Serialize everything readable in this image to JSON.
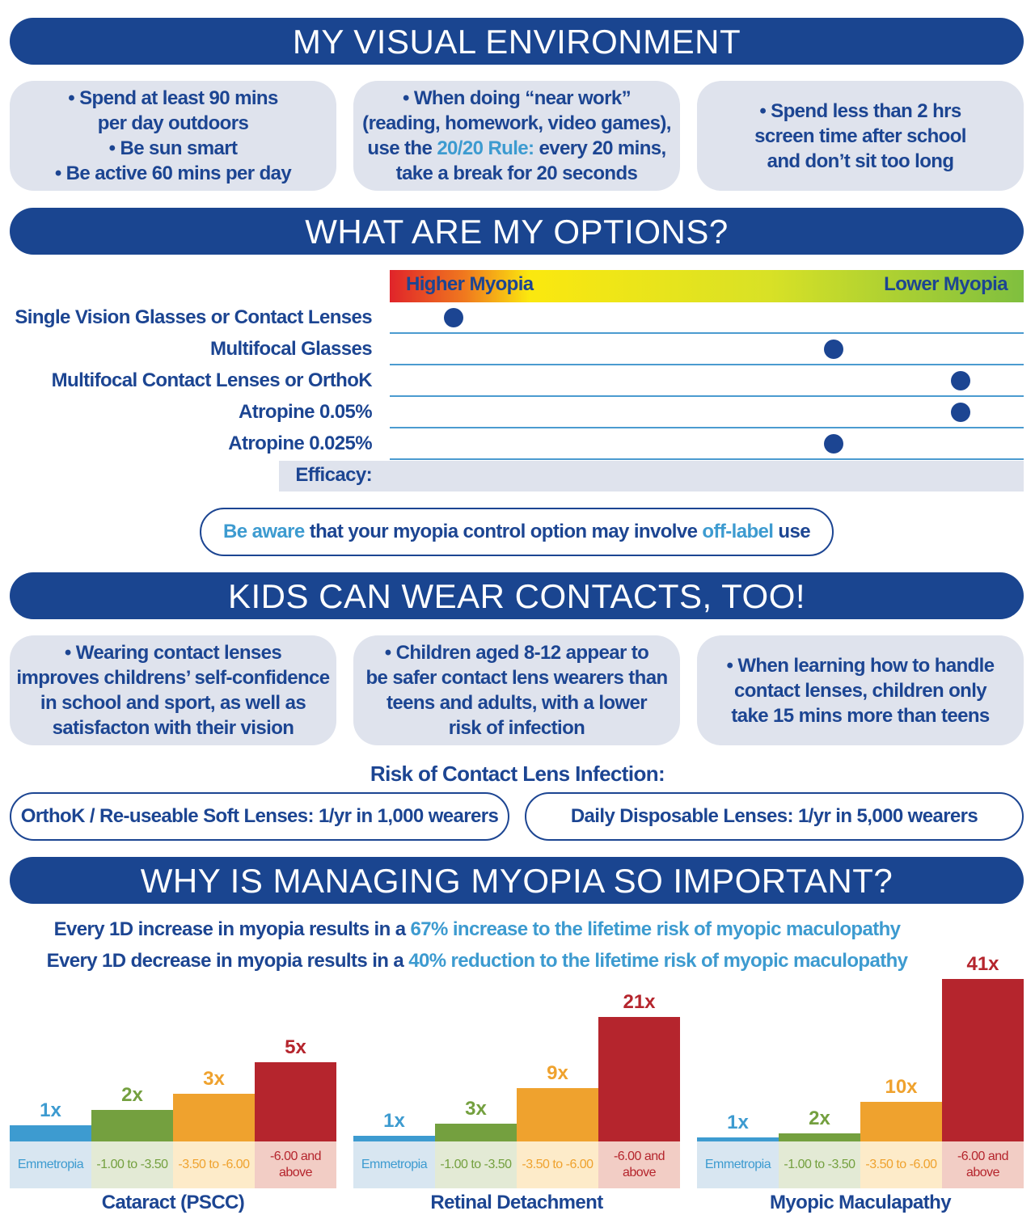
{
  "sections": {
    "environment": {
      "title": "MY VISUAL ENVIRONMENT",
      "boxes": [
        {
          "lines": [
            "• Spend at least 90 mins",
            "per day outdoors",
            "• Be sun smart",
            "• Be active 60 mins per day"
          ]
        },
        {
          "l1": "• When doing “near work”",
          "l2": "(reading, homework, video games),",
          "l3a": "use the ",
          "l3b": "20/20 Rule:",
          "l3c": " every 20 mins,",
          "l4": "take a break for 20 seconds"
        },
        {
          "lines": [
            "• Spend less than 2 hrs",
            "screen time after school",
            "and don’t sit too long"
          ]
        }
      ]
    },
    "options": {
      "title": "WHAT ARE MY OPTIONS?",
      "note_a": "Be aware",
      "note_b": " that your myopia control option may involve ",
      "note_c": "off-label",
      "note_d": " use"
    },
    "contacts": {
      "title": "KIDS CAN WEAR CONTACTS, TOO!",
      "boxes": [
        [
          "• Wearing contact lenses",
          "improves childrens’ self-confidence",
          "in school and sport, as well as",
          "satisfacton with their vision"
        ],
        [
          "• Children aged 8-12 appear to",
          "be safer contact lens wearers than",
          "teens and adults, with a lower",
          "risk of infection"
        ],
        [
          "• When learning how to handle",
          "contact lenses, children only",
          "take 15 mins more than teens"
        ]
      ],
      "risk_title": "Risk of Contact Lens Infection:",
      "risk_items": [
        "OrthoK / Re-useable Soft Lenses: 1/yr in 1,000 wearers",
        "Daily Disposable Lenses: 1/yr in 5,000 wearers"
      ]
    },
    "important": {
      "title": "WHY IS MANAGING MYOPIA SO IMPORTANT?",
      "line1a": "Every 1D increase in myopia results in a ",
      "line1b": "67% increase to the lifetime risk of myopic maculopathy",
      "line2a": "Every 1D decrease in myopia results in a ",
      "line2b": "40% reduction to the lifetime risk of myopic maculopathy"
    }
  },
  "colors": {
    "navy": "#1a4590",
    "accent": "#3d9bd0",
    "box": "#dfe3ed",
    "emmetropia": "#3d9bd0",
    "low": "#74a03f",
    "mid": "#efa22e",
    "high": "#b5252d"
  },
  "chart_data": [
    {
      "type": "dot",
      "scale_left": "Higher Myopia",
      "scale_right": "Lower Myopia",
      "xlabel": "Efficacy:",
      "categories": [
        "0%",
        "17%",
        "25%",
        "33%",
        "50%"
      ],
      "rows": [
        "Single Vision Glasses or Contact Lenses",
        "Multifocal Glasses",
        "Multifocal Contact Lenses or OrthoK",
        "Atropine 0.05%",
        "Atropine 0.025%"
      ],
      "values": [
        "0%",
        "33%",
        "50%",
        "50%",
        "33%"
      ]
    },
    {
      "type": "bar",
      "title": "Cataract (PSCC)",
      "categories": [
        "Emmetropia",
        "-1.00 to -3.50",
        "-3.50 to -6.00",
        "-6.00 and above"
      ],
      "values": [
        1,
        2,
        3,
        5
      ],
      "labels": [
        "1x",
        "2x",
        "3x",
        "5x"
      ]
    },
    {
      "type": "bar",
      "title": "Retinal Detachment",
      "categories": [
        "Emmetropia",
        "-1.00 to -3.50",
        "-3.50 to -6.00",
        "-6.00 and above"
      ],
      "values": [
        1,
        3,
        9,
        21
      ],
      "labels": [
        "1x",
        "3x",
        "9x",
        "21x"
      ]
    },
    {
      "type": "bar",
      "title": "Myopic Maculapathy",
      "categories": [
        "Emmetropia",
        "-1.00 to -3.50",
        "-3.50 to -6.00",
        "-6.00 and above"
      ],
      "values": [
        1,
        2,
        10,
        41
      ],
      "labels": [
        "1x",
        "2x",
        "10x",
        "41x"
      ]
    }
  ]
}
